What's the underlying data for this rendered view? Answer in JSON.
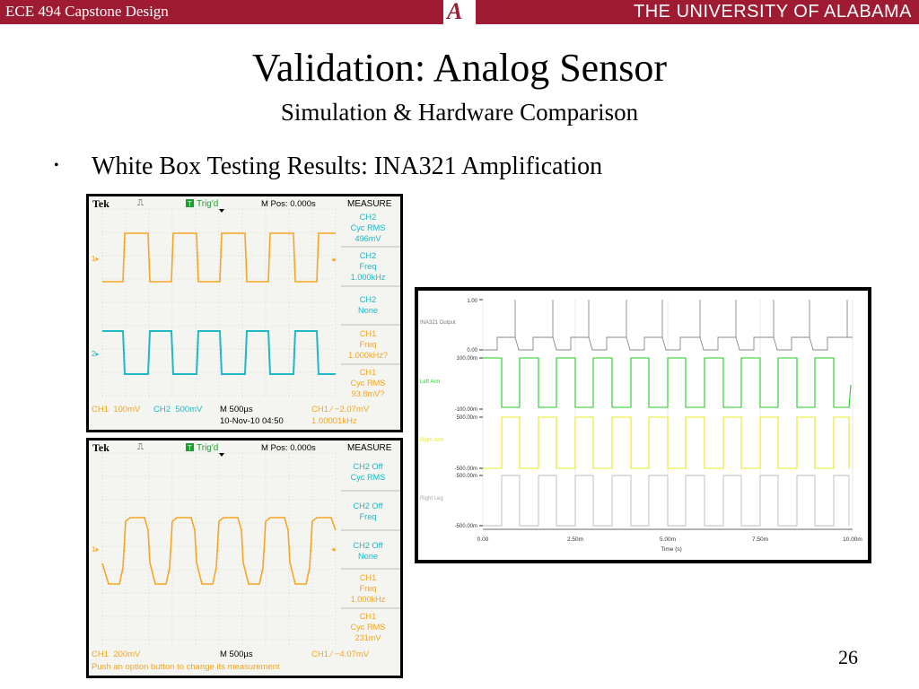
{
  "header": {
    "course": "ECE 494 Capstone Design",
    "logo_letter": "A",
    "university": "THE UNIVERSITY OF ALABAMA"
  },
  "slide": {
    "title": "Validation: Analog Sensor",
    "subtitle": "Simulation & Hardware Comparison",
    "bullet": "White Box Testing Results: INA321 Amplification",
    "page_number": "26"
  },
  "scope1": {
    "brand": "Tek",
    "status": "Trig'd",
    "t_icon": "T",
    "mpos": "M Pos: 0.000s",
    "menu_title": "MEASURE",
    "ch1_marker": "1",
    "ch2_marker": "2",
    "measurements": [
      [
        "CH2",
        "Cyc RMS",
        "496mV"
      ],
      [
        "CH2",
        "Freq",
        "1.000kHz"
      ],
      [
        "CH2",
        "None"
      ],
      [
        "CH1",
        "Freq",
        "1.000kHz?"
      ],
      [
        "CH1",
        "Cyc RMS",
        "93.8mV?"
      ]
    ],
    "bottom_ch1": "CH1  100mV",
    "bottom_ch2": "CH2  500mV",
    "bottom_timebase": "M 500µs",
    "bottom_trigger": "CH1 ∕ −2.07mV",
    "bottom_date": "10-Nov-10 04:50",
    "bottom_freq": "1.00001kHz"
  },
  "scope2": {
    "brand": "Tek",
    "status": "Trig'd",
    "t_icon": "T",
    "mpos": "M Pos: 0.000s",
    "menu_title": "MEASURE",
    "ch1_marker": "1",
    "measurements": [
      [
        "CH2 Off",
        "Cyc RMS"
      ],
      [
        "CH2 Off",
        "Freq"
      ],
      [
        "CH2 Off",
        "None"
      ],
      [
        "CH1",
        "Freq",
        "1.000kHz"
      ],
      [
        "CH1",
        "Cyc RMS",
        "231mV"
      ]
    ],
    "bottom_ch1": "CH1  200mV",
    "bottom_timebase": "M 500µs",
    "bottom_trigger": "CH1 ∕ −4.07mV",
    "hint": "Push an option button to change its measurement"
  },
  "simulation": {
    "trace_labels": [
      "INA321 Output",
      "Left Arm",
      "Right Arm",
      "Right Leg"
    ],
    "y_labels": [
      "1.00",
      "0.00",
      "100.00m",
      "-100.00m",
      "500.00m",
      "-500.00m",
      "500.00m",
      "-500.00m"
    ],
    "x_ticks": [
      "0.00",
      "2.50m",
      "5.00m",
      "7.50m",
      "10.00m"
    ],
    "x_label": "Time (s)"
  },
  "colors": {
    "header_bg": "#9e1b32",
    "ch1_trace": "#f5a623",
    "ch2_trace": "#1fb8c4",
    "sim_green": "#22cc22",
    "sim_yellow": "#e8e820"
  }
}
